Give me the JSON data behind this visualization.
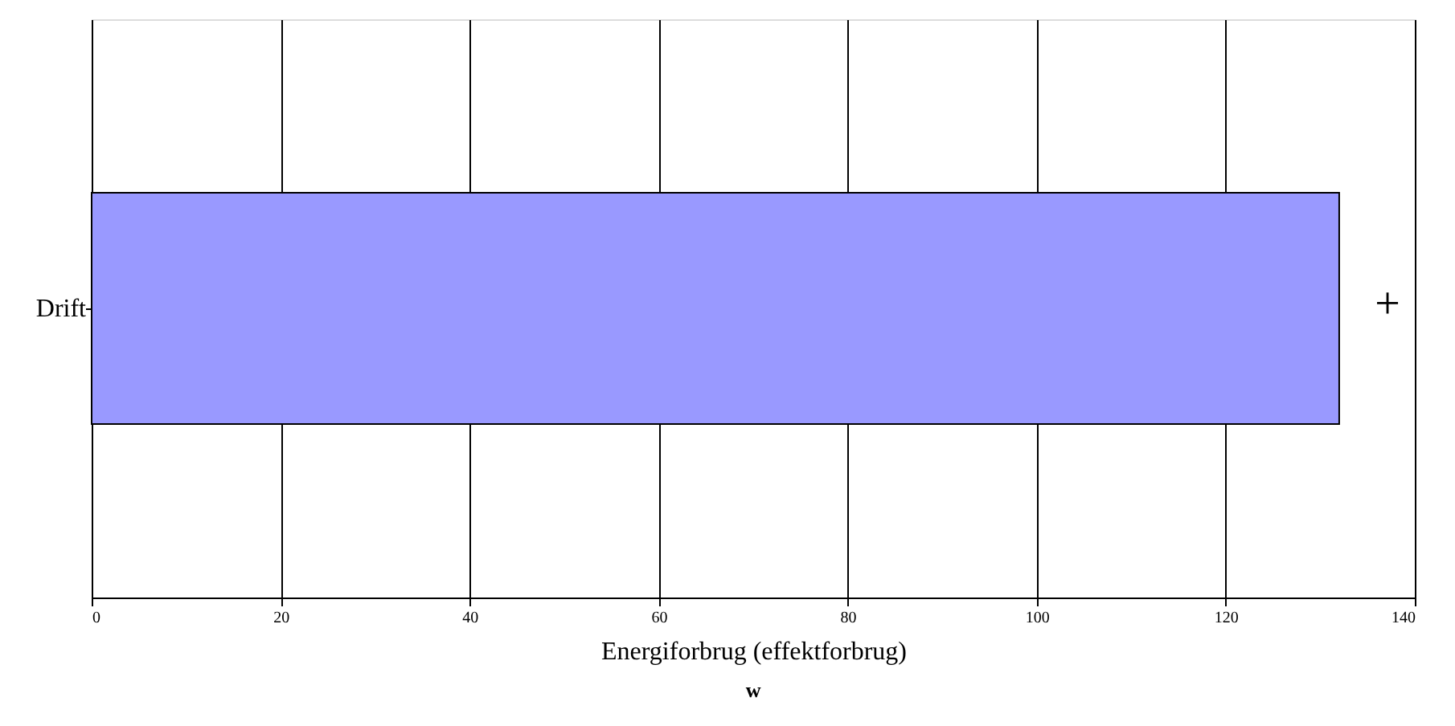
{
  "chart_data": {
    "type": "bar",
    "orientation": "horizontal",
    "categories": [
      "Drift"
    ],
    "series": [
      {
        "color": "#9999ff",
        "values": [
          132
        ]
      }
    ],
    "xlabel": "Energiforbrug (effektforbrug)",
    "xlim": [
      0,
      140
    ],
    "xticks": [
      0,
      20,
      40,
      60,
      80,
      100,
      120,
      140
    ],
    "grid": "x",
    "annotations": [
      "+",
      "w"
    ]
  }
}
